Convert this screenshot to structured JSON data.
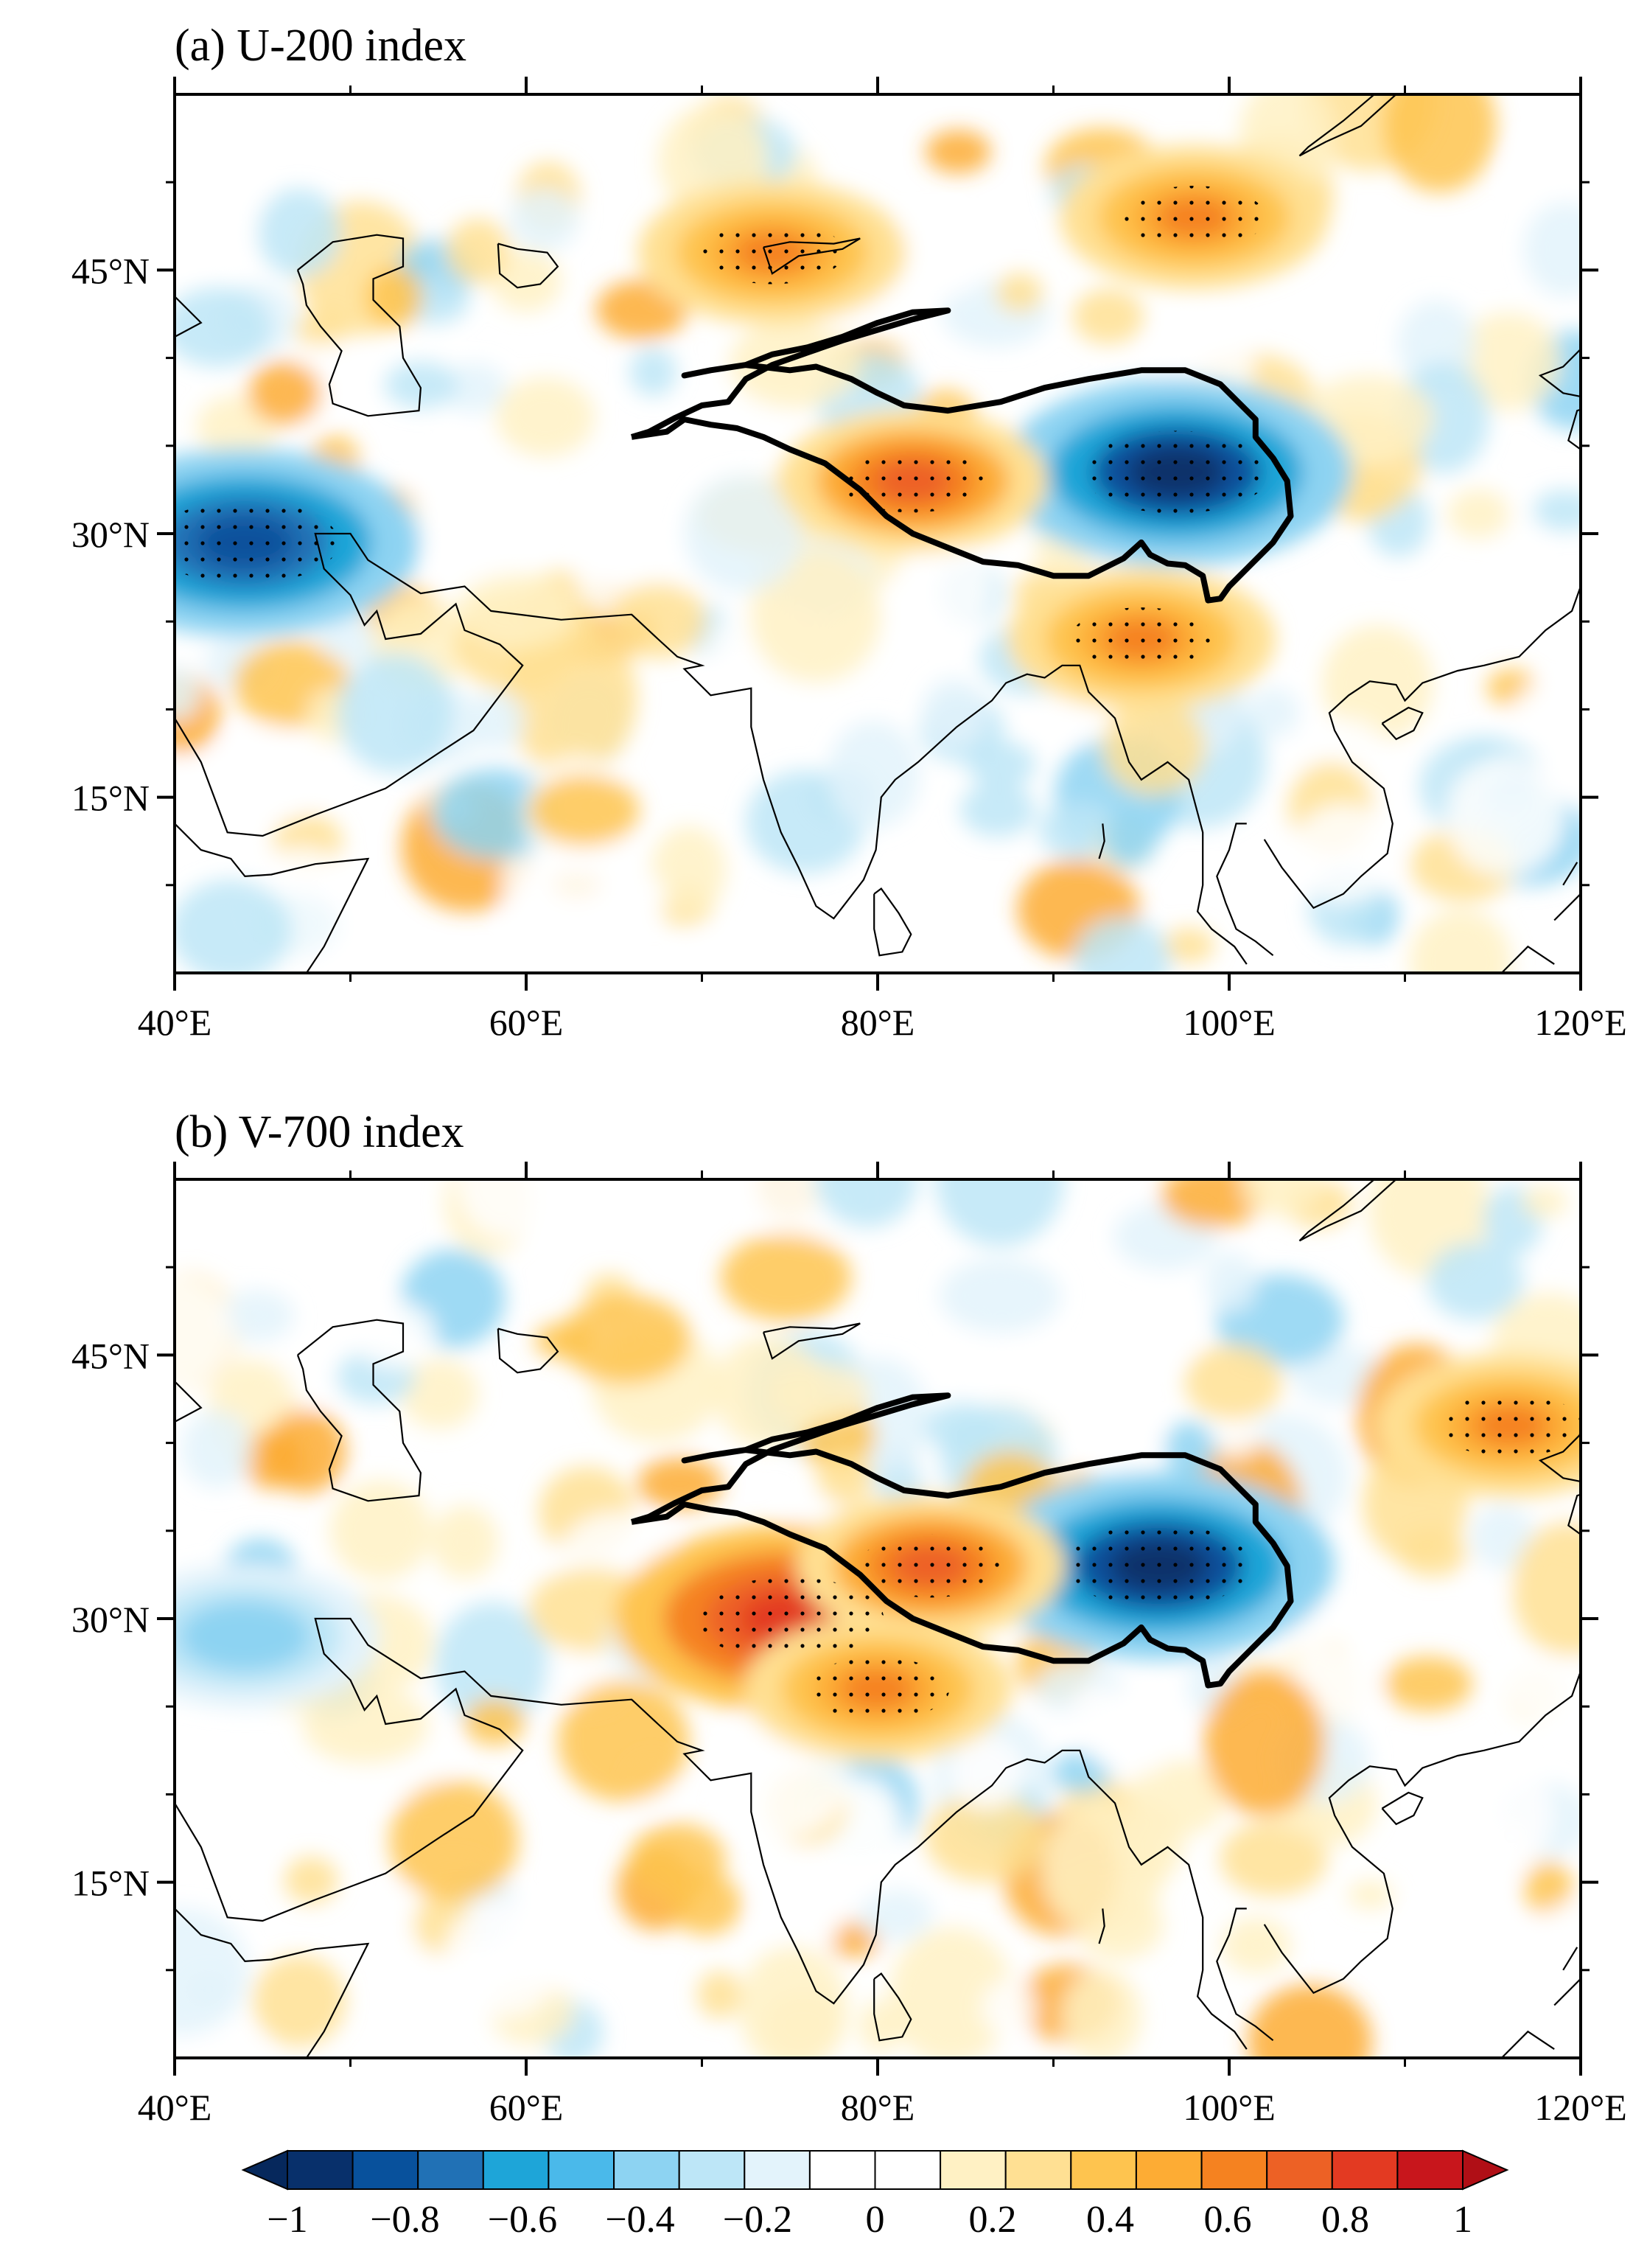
{
  "panels": [
    {
      "id": "a",
      "title": "(a) U-200 index",
      "lat_ticks": [
        "45°N",
        "30°N",
        "15°N"
      ],
      "lon_ticks": [
        "40°E",
        "60°E",
        "80°E",
        "100°E",
        "120°E"
      ],
      "anomalies": [
        {
          "name": "east-tibet-negative",
          "lon": 97,
          "lat": 33.5,
          "value": -0.9,
          "significant": true
        },
        {
          "name": "arabia-negative",
          "lon": 44,
          "lat": 29.5,
          "value": -0.8,
          "significant": true
        },
        {
          "name": "himalaya-positive",
          "lon": 82,
          "lat": 33,
          "value": 0.7,
          "significant": true
        },
        {
          "name": "balkhash-positive",
          "lon": 74,
          "lat": 46,
          "value": 0.6,
          "significant": true
        },
        {
          "name": "mongolia-positive",
          "lon": 98,
          "lat": 48,
          "value": 0.6,
          "significant": true
        },
        {
          "name": "myanmar-positive",
          "lon": 95,
          "lat": 24,
          "value": 0.6,
          "significant": true
        }
      ]
    },
    {
      "id": "b",
      "title": "(b) V-700 index",
      "lat_ticks": [
        "45°N",
        "30°N",
        "15°N"
      ],
      "lon_ticks": [
        "40°E",
        "60°E",
        "80°E",
        "100°E",
        "120°E"
      ],
      "anomalies": [
        {
          "name": "east-tibet-negative",
          "lon": 96,
          "lat": 33,
          "value": -0.9,
          "significant": true
        },
        {
          "name": "nw-india-positive",
          "lon": 75,
          "lat": 30,
          "value": 0.85,
          "significant": true
        },
        {
          "name": "himalaya-positive",
          "lon": 83,
          "lat": 33,
          "value": 0.7,
          "significant": true
        },
        {
          "name": "north-india-positive",
          "lon": 80,
          "lat": 26,
          "value": 0.6,
          "significant": true
        },
        {
          "name": "china-positive",
          "lon": 116,
          "lat": 41,
          "value": 0.6,
          "significant": true
        },
        {
          "name": "arabia-negative",
          "lon": 44,
          "lat": 29,
          "value": -0.4,
          "significant": false
        }
      ]
    }
  ],
  "colorbar": {
    "labels": [
      "−1",
      "−0.8",
      "−0.6",
      "−0.4",
      "−0.2",
      "0",
      "0.2",
      "0.4",
      "0.6",
      "0.8",
      "1"
    ],
    "colors": [
      "#08306b",
      "#08519c",
      "#2171b5",
      "#1ea5d8",
      "#4ab9ea",
      "#8dd3f2",
      "#bde6f7",
      "#e3f3fb",
      "#ffffff",
      "#ffffff",
      "#fff1c4",
      "#ffe093",
      "#fec44f",
      "#fdac34",
      "#f58220",
      "#ed6125",
      "#e33a22",
      "#c8161c"
    ],
    "under_color": "#06285c",
    "over_color": "#b00f16"
  }
}
